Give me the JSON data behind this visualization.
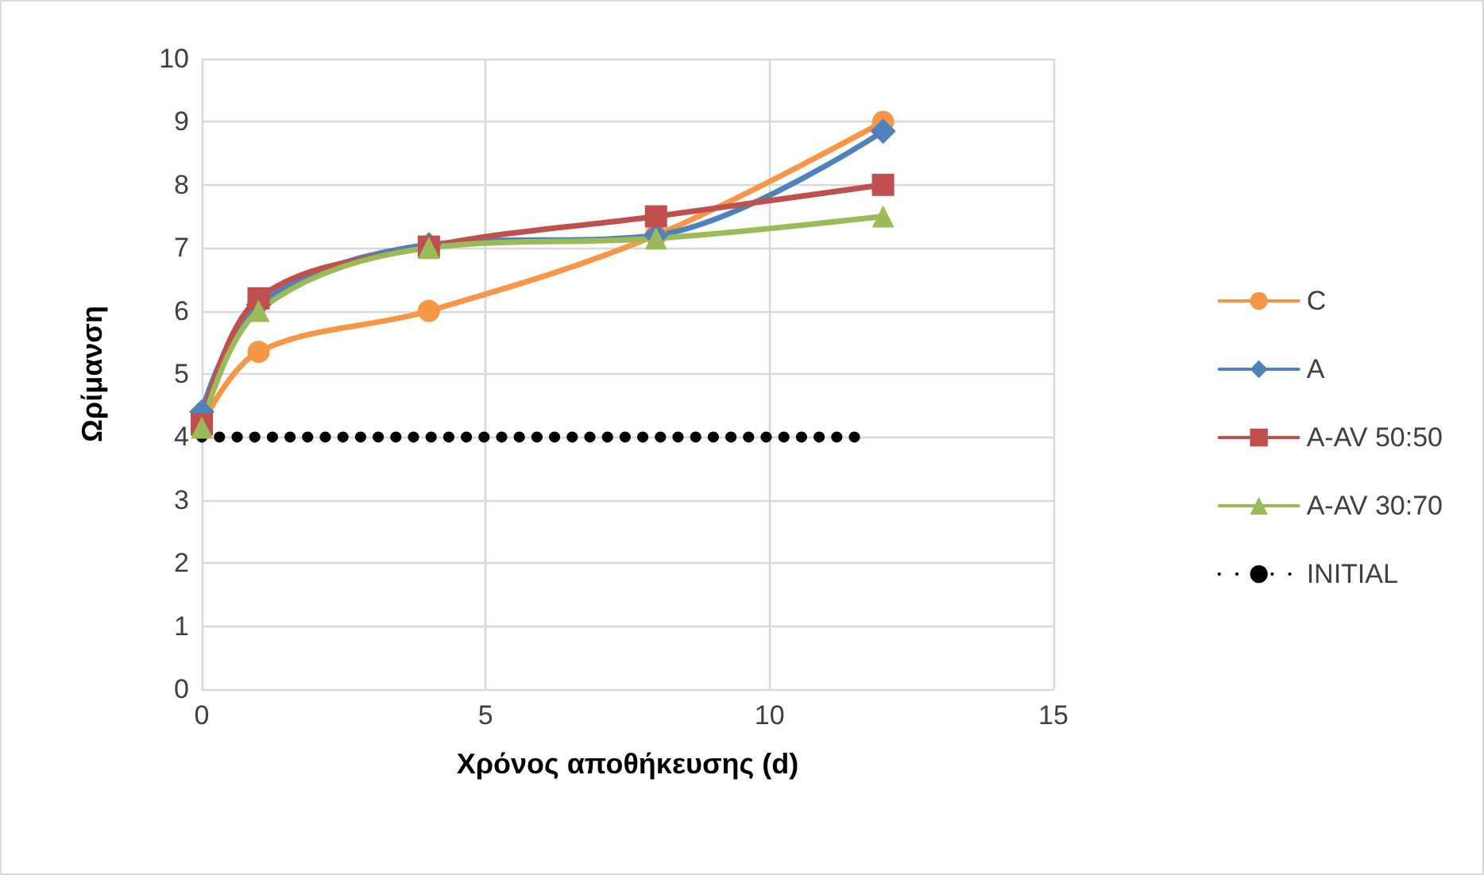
{
  "chart_data": {
    "type": "line",
    "xlabel": "Χρόνος αποθήκευσης (d)",
    "ylabel": "Ωρίμανση",
    "xlim": [
      0,
      15
    ],
    "xticks": [
      0,
      5,
      10,
      15
    ],
    "ylim": [
      0,
      10
    ],
    "yticks": [
      0,
      1,
      2,
      3,
      4,
      5,
      6,
      7,
      8,
      9,
      10
    ],
    "grid": true,
    "legend": "right",
    "series": [
      {
        "name": "C",
        "color": "#f79646",
        "marker": "circle",
        "line_style": "solid",
        "x": [
          0,
          1,
          4,
          8,
          12
        ],
        "values": [
          4.2,
          5.35,
          6,
          7.2,
          9
        ]
      },
      {
        "name": "A",
        "color": "#4f81bd",
        "marker": "diamond",
        "line_style": "solid",
        "x": [
          0,
          1,
          4,
          8,
          12
        ],
        "values": [
          4.4,
          6.1,
          7.05,
          7.2,
          8.85
        ]
      },
      {
        "name": "A-AV 50:50",
        "color": "#c0504d",
        "marker": "square",
        "line_style": "solid",
        "x": [
          0,
          1,
          4,
          8,
          12
        ],
        "values": [
          4.2,
          6.2,
          7.02,
          7.5,
          8
        ]
      },
      {
        "name": "A-AV 30:70",
        "color": "#9bbb59",
        "marker": "triangle",
        "line_style": "solid",
        "x": [
          0,
          1,
          4,
          8,
          12
        ],
        "values": [
          4.15,
          6,
          7,
          7.15,
          7.5
        ]
      },
      {
        "name": "INITIAL",
        "color": "#000000",
        "marker": "none",
        "line_style": "dotted",
        "x": [
          0,
          11.5
        ],
        "values": [
          4,
          4
        ]
      }
    ]
  }
}
